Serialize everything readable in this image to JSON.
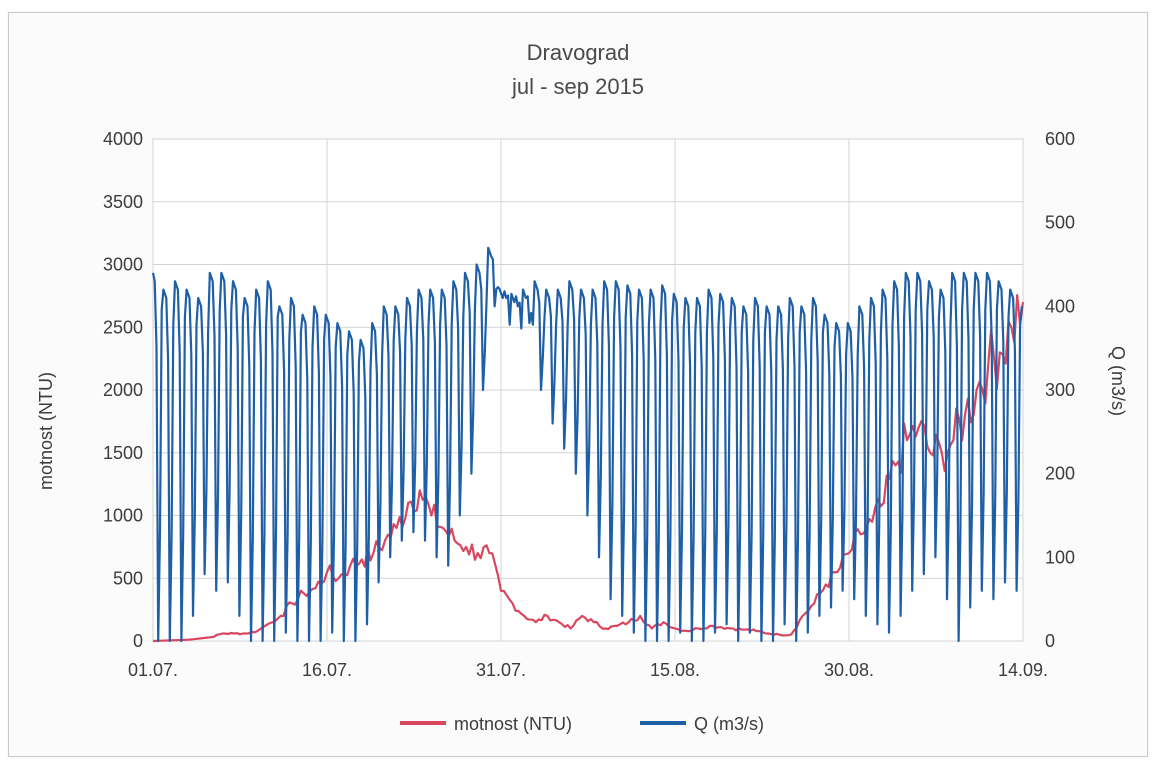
{
  "chart_data": {
    "type": "line",
    "title": "Dravograd",
    "subtitle": "jul - sep 2015",
    "x_ticks": [
      "01.07.",
      "16.07.",
      "31.07.",
      "15.08.",
      "30.08.",
      "14.09."
    ],
    "x_range": [
      "2015-07-01",
      "2015-09-14"
    ],
    "y_left": {
      "label": "motnost (NTU)",
      "range": [
        0,
        4000
      ],
      "ticks": [
        0,
        500,
        1000,
        1500,
        2000,
        2500,
        3000,
        3500,
        4000
      ]
    },
    "y_right": {
      "label": "Q (m3/s)",
      "range": [
        0,
        600
      ],
      "ticks": [
        0,
        100,
        200,
        300,
        400,
        500,
        600
      ]
    },
    "grid": true,
    "legend_position": "bottom",
    "series": [
      {
        "name": "motnost (NTU)",
        "axis": "left",
        "color": "#d9475f",
        "x": [
          "2015-07-01",
          "2015-07-04",
          "2015-07-06",
          "2015-07-07",
          "2015-07-08",
          "2015-07-09",
          "2015-07-10",
          "2015-07-12",
          "2015-07-13",
          "2015-07-14",
          "2015-07-15",
          "2015-07-16",
          "2015-07-17",
          "2015-07-18",
          "2015-07-19",
          "2015-07-20",
          "2015-07-21",
          "2015-07-22",
          "2015-07-23",
          "2015-07-24",
          "2015-07-25",
          "2015-07-26",
          "2015-07-27",
          "2015-07-28",
          "2015-07-29",
          "2015-07-30",
          "2015-07-31",
          "2015-08-01",
          "2015-08-02",
          "2015-08-03",
          "2015-08-04",
          "2015-08-05",
          "2015-08-06",
          "2015-08-07",
          "2015-08-08",
          "2015-08-09",
          "2015-08-10",
          "2015-08-11",
          "2015-08-12",
          "2015-08-13",
          "2015-08-14",
          "2015-08-15",
          "2015-08-16",
          "2015-08-17",
          "2015-08-18",
          "2015-08-19",
          "2015-08-20",
          "2015-08-21",
          "2015-08-22",
          "2015-08-23",
          "2015-08-24",
          "2015-08-25",
          "2015-08-26",
          "2015-08-27",
          "2015-08-28",
          "2015-08-29",
          "2015-08-30",
          "2015-08-31",
          "2015-09-01",
          "2015-09-02",
          "2015-09-03",
          "2015-09-04",
          "2015-09-05",
          "2015-09-06",
          "2015-09-07",
          "2015-09-08",
          "2015-09-09",
          "2015-09-10",
          "2015-09-11",
          "2015-09-12",
          "2015-09-13",
          "2015-09-14"
        ],
        "values": [
          0,
          10,
          30,
          60,
          60,
          60,
          80,
          200,
          300,
          380,
          420,
          550,
          500,
          600,
          650,
          700,
          800,
          900,
          1100,
          1200,
          1000,
          900,
          800,
          750,
          700,
          700,
          400,
          300,
          200,
          150,
          200,
          150,
          100,
          200,
          150,
          100,
          120,
          150,
          200,
          100,
          150,
          100,
          80,
          100,
          120,
          110,
          100,
          90,
          80,
          60,
          50,
          50,
          200,
          300,
          450,
          550,
          700,
          850,
          950,
          1100,
          1400,
          1600,
          1700,
          1500,
          1500,
          1600,
          1800,
          2000,
          2200,
          2300,
          2500,
          2700
        ]
      },
      {
        "name": "Q (m3/s)",
        "axis": "right",
        "color": "#1f5fa6",
        "x": [
          "2015-07-01",
          "2015-07-02",
          "2015-07-03",
          "2015-07-04",
          "2015-07-05",
          "2015-07-06",
          "2015-07-07",
          "2015-07-08",
          "2015-07-09",
          "2015-07-10",
          "2015-07-11",
          "2015-07-12",
          "2015-07-13",
          "2015-07-14",
          "2015-07-15",
          "2015-07-16",
          "2015-07-17",
          "2015-07-18",
          "2015-07-19",
          "2015-07-20",
          "2015-07-21",
          "2015-07-22",
          "2015-07-23",
          "2015-07-24",
          "2015-07-25",
          "2015-07-26",
          "2015-07-27",
          "2015-07-28",
          "2015-07-29",
          "2015-07-30",
          "2015-07-31",
          "2015-08-01",
          "2015-08-02",
          "2015-08-03",
          "2015-08-04",
          "2015-08-05",
          "2015-08-06",
          "2015-08-07",
          "2015-08-08",
          "2015-08-09",
          "2015-08-10",
          "2015-08-11",
          "2015-08-12",
          "2015-08-13",
          "2015-08-14",
          "2015-08-15",
          "2015-08-16",
          "2015-08-17",
          "2015-08-18",
          "2015-08-19",
          "2015-08-20",
          "2015-08-21",
          "2015-08-22",
          "2015-08-23",
          "2015-08-24",
          "2015-08-25",
          "2015-08-26",
          "2015-08-27",
          "2015-08-28",
          "2015-08-29",
          "2015-08-30",
          "2015-08-31",
          "2015-09-01",
          "2015-09-02",
          "2015-09-03",
          "2015-09-04",
          "2015-09-05",
          "2015-09-06",
          "2015-09-07",
          "2015-09-08",
          "2015-09-09",
          "2015-09-10",
          "2015-09-11",
          "2015-09-12",
          "2015-09-13",
          "2015-09-14"
        ],
        "high": [
          440,
          420,
          430,
          420,
          410,
          440,
          440,
          430,
          410,
          420,
          430,
          400,
          410,
          390,
          400,
          390,
          380,
          370,
          360,
          380,
          400,
          400,
          410,
          420,
          420,
          420,
          430,
          440,
          450,
          470,
          420,
          415,
          420,
          430,
          420,
          420,
          430,
          420,
          420,
          430,
          430,
          425,
          420,
          420,
          425,
          415,
          410,
          410,
          420,
          415,
          410,
          400,
          410,
          400,
          400,
          410,
          400,
          410,
          390,
          380,
          380,
          400,
          410,
          420,
          430,
          440,
          440,
          430,
          420,
          440,
          440,
          440,
          440,
          430,
          420,
          400
        ],
        "low": [
          0,
          0,
          0,
          30,
          80,
          60,
          70,
          30,
          0,
          0,
          0,
          10,
          0,
          0,
          0,
          10,
          0,
          0,
          20,
          70,
          100,
          120,
          130,
          120,
          100,
          90,
          150,
          200,
          300,
          400,
          410,
          400,
          380,
          300,
          260,
          230,
          200,
          150,
          100,
          50,
          30,
          10,
          0,
          0,
          0,
          10,
          0,
          0,
          10,
          20,
          0,
          10,
          0,
          0,
          20,
          0,
          10,
          30,
          40,
          60,
          50,
          30,
          20,
          10,
          30,
          60,
          80,
          100,
          50,
          0,
          40,
          60,
          50,
          70,
          60,
          50
        ]
      }
    ]
  }
}
